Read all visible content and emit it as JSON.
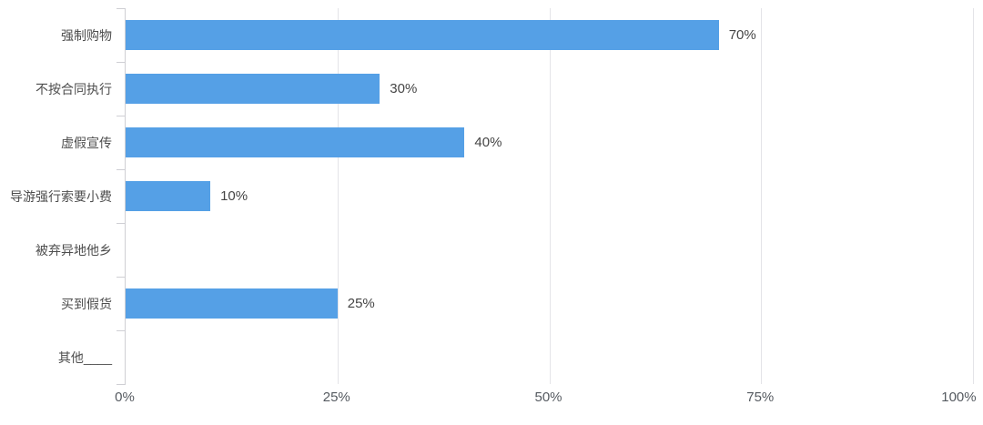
{
  "chart_data": {
    "type": "bar",
    "orientation": "horizontal",
    "title": "",
    "xlabel": "",
    "ylabel": "",
    "categories": [
      "强制购物",
      "不按合同执行",
      "虚假宣传",
      "导游强行索要小费",
      "被弃异地他乡",
      "买到假货",
      "其他____"
    ],
    "values": [
      70,
      30,
      40,
      10,
      0,
      25,
      0
    ],
    "data_labels": [
      "70%",
      "30%",
      "40%",
      "10%",
      "",
      "25%",
      ""
    ],
    "x_ticks": [
      "0%",
      "25%",
      "50%",
      "75%",
      "100%"
    ],
    "x_tick_values": [
      0,
      25,
      50,
      75,
      100
    ],
    "xlim": [
      0,
      100
    ],
    "grid": "vertical-gridlines-on",
    "legend": "none",
    "bar_color": "#55a0e6",
    "gridline_color": "#e4e4e8",
    "axis_color": "#cfcfd4",
    "label_color": "#4d4d4d",
    "value_color": "#454545"
  }
}
